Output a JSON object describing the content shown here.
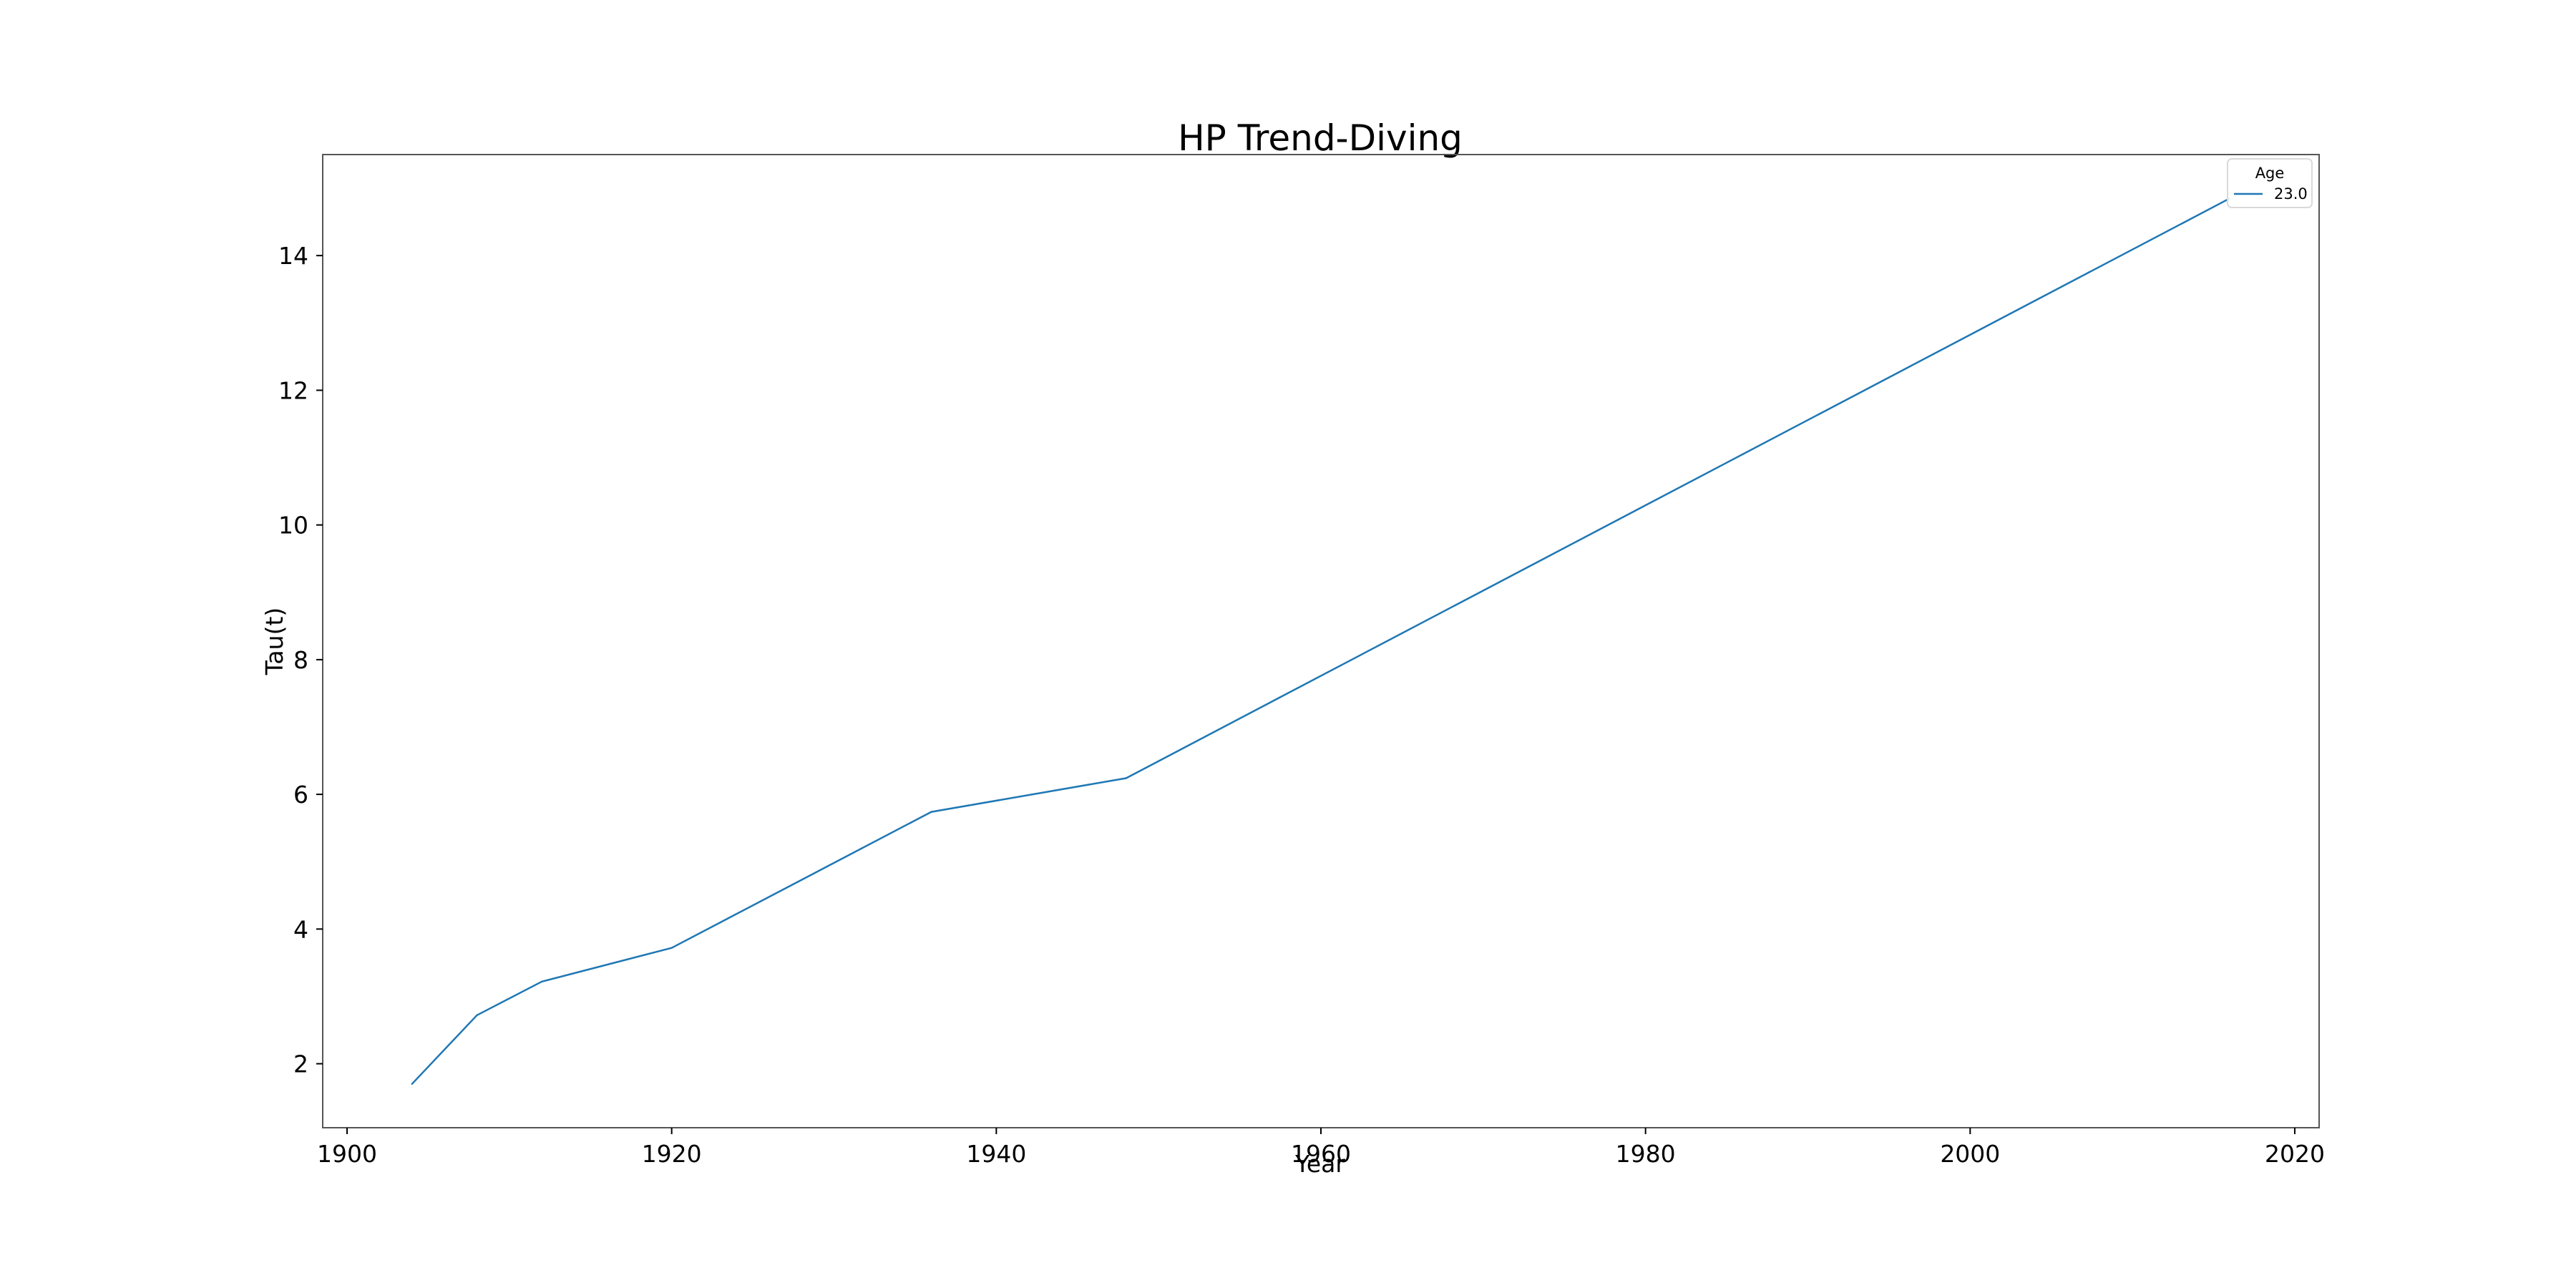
{
  "chart_data": {
    "type": "line",
    "title": "HP Trend-Diving",
    "xlabel": "Year",
    "ylabel": "Tau(t)",
    "xlim": [
      1898.5,
      2021.5
    ],
    "ylim": [
      1.05,
      15.5
    ],
    "xticks": [
      1900,
      1920,
      1940,
      1960,
      1980,
      2000,
      2020
    ],
    "yticks": [
      2,
      4,
      6,
      8,
      10,
      12,
      14
    ],
    "grid": false,
    "legend": {
      "title": "Age",
      "placement": "top-right",
      "entries": [
        "23.0"
      ]
    },
    "series": [
      {
        "name": "23.0",
        "color": "#1f77b4",
        "x": [
          1904,
          1908,
          1912,
          1920,
          1936,
          1948,
          2016
        ],
        "y": [
          1.7,
          2.72,
          3.22,
          3.72,
          5.74,
          6.24,
          14.85
        ]
      }
    ]
  }
}
